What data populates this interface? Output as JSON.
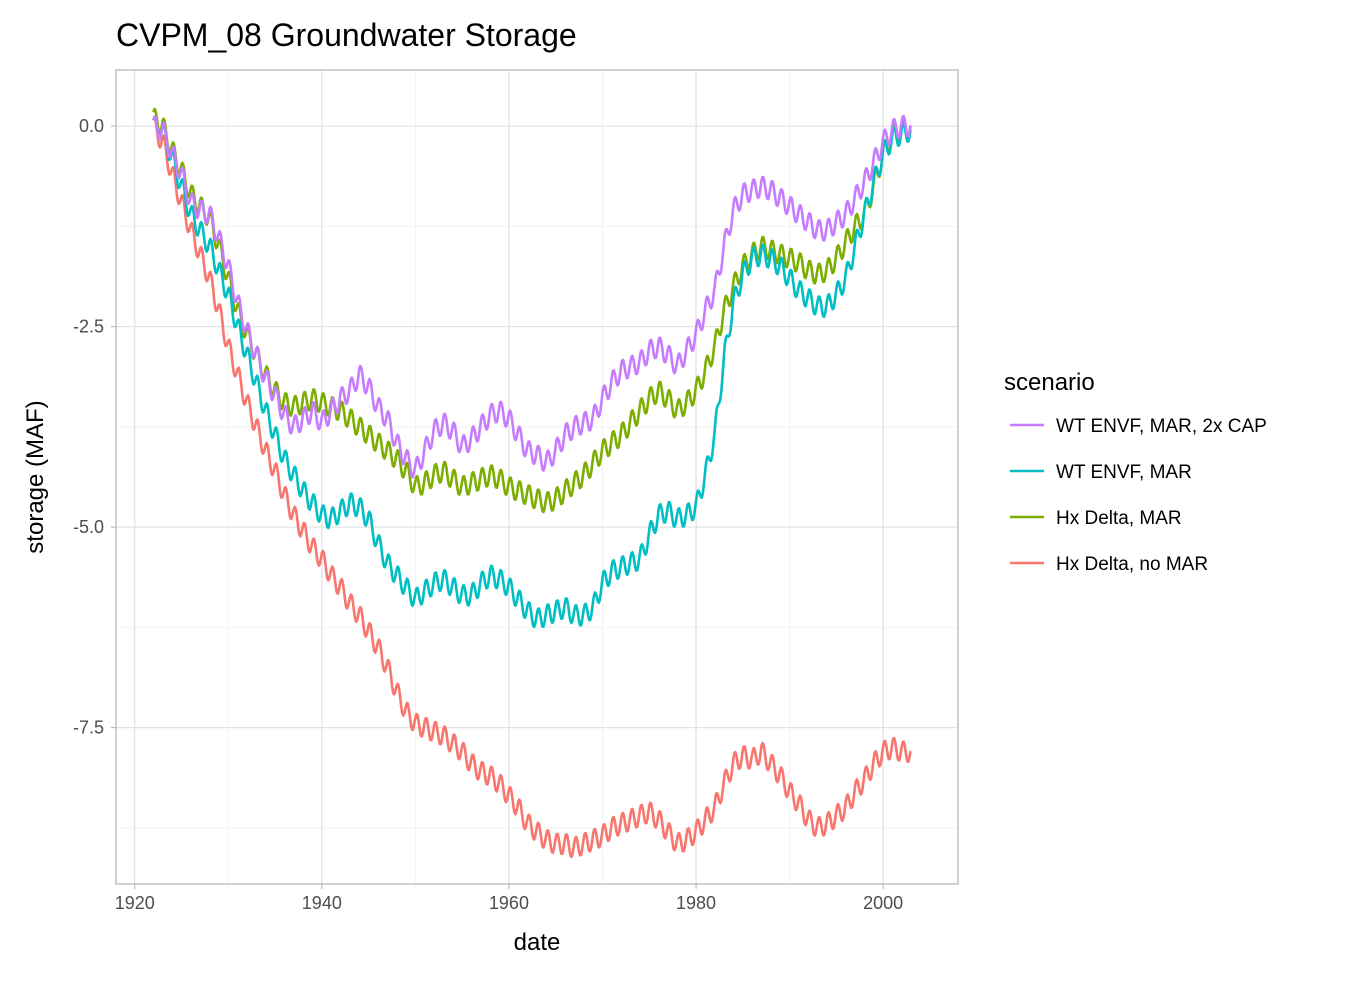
{
  "chart_data": {
    "type": "line",
    "title": "CVPM_08 Groundwater Storage",
    "xlabel": "date",
    "ylabel": "storage (MAF)",
    "xlim": [
      1918,
      2008
    ],
    "ylim": [
      -9.45,
      0.7
    ],
    "x_ticks": [
      1920,
      1940,
      1960,
      1980,
      2000
    ],
    "x_tick_labels": [
      "1920",
      "1940",
      "1960",
      "1980",
      "2000"
    ],
    "y_ticks": [
      0,
      -2.5,
      -5,
      -7.5
    ],
    "y_tick_labels": [
      "0.0",
      "-2.5",
      "-5.0",
      "-7.5"
    ],
    "grid": true,
    "legend": {
      "title": "scenario",
      "position": "right"
    },
    "series": [
      {
        "name": "WT ENVF, MAR, 2x CAP",
        "color": "#C77CFF",
        "x": [
          1922,
          1923,
          1924,
          1925,
          1926,
          1927,
          1928,
          1929,
          1930,
          1931,
          1932,
          1933,
          1934,
          1935,
          1936,
          1937,
          1938,
          1939,
          1940,
          1941,
          1942,
          1943,
          1944,
          1945,
          1946,
          1947,
          1948,
          1949,
          1950,
          1951,
          1952,
          1953,
          1954,
          1955,
          1956,
          1957,
          1958,
          1959,
          1960,
          1961,
          1962,
          1963,
          1964,
          1965,
          1966,
          1967,
          1968,
          1969,
          1970,
          1971,
          1972,
          1973,
          1974,
          1975,
          1976,
          1977,
          1978,
          1979,
          1980,
          1981,
          1982,
          1983,
          1984,
          1985,
          1986,
          1987,
          1988,
          1989,
          1990,
          1991,
          1992,
          1993,
          1994,
          1995,
          1996,
          1997,
          1998,
          1999,
          2000,
          2001,
          2002,
          2003
        ],
        "y": [
          0.0,
          -0.05,
          -0.35,
          -0.6,
          -0.95,
          -1.05,
          -1.1,
          -1.4,
          -1.75,
          -2.2,
          -2.55,
          -2.85,
          -3.15,
          -3.35,
          -3.6,
          -3.75,
          -3.65,
          -3.55,
          -3.7,
          -3.55,
          -3.4,
          -3.3,
          -3.1,
          -3.25,
          -3.5,
          -3.65,
          -3.95,
          -4.15,
          -4.3,
          -4.05,
          -3.8,
          -3.7,
          -3.8,
          -4.0,
          -3.9,
          -3.75,
          -3.6,
          -3.55,
          -3.65,
          -3.85,
          -4.05,
          -4.1,
          -4.2,
          -4.05,
          -3.85,
          -3.75,
          -3.7,
          -3.65,
          -3.4,
          -3.2,
          -3.05,
          -3.0,
          -2.95,
          -2.8,
          -2.75,
          -2.85,
          -3.0,
          -2.8,
          -2.6,
          -2.3,
          -2.05,
          -1.5,
          -1.05,
          -0.85,
          -0.8,
          -0.75,
          -0.8,
          -0.9,
          -1.0,
          -1.1,
          -1.2,
          -1.3,
          -1.3,
          -1.2,
          -1.1,
          -0.9,
          -0.7,
          -0.45,
          -0.2,
          -0.05,
          0.0,
          0.0
        ]
      },
      {
        "name": "WT ENVF, MAR",
        "color": "#00BFC4",
        "x": [
          1922,
          1923,
          1924,
          1925,
          1926,
          1927,
          1928,
          1929,
          1930,
          1931,
          1932,
          1933,
          1934,
          1935,
          1936,
          1937,
          1938,
          1939,
          1940,
          1941,
          1942,
          1943,
          1944,
          1945,
          1946,
          1947,
          1948,
          1949,
          1950,
          1951,
          1952,
          1953,
          1954,
          1955,
          1956,
          1957,
          1958,
          1959,
          1960,
          1961,
          1962,
          1963,
          1964,
          1965,
          1966,
          1967,
          1968,
          1969,
          1970,
          1971,
          1972,
          1973,
          1974,
          1975,
          1976,
          1977,
          1978,
          1979,
          1980,
          1981,
          1982,
          1983,
          1984,
          1985,
          1986,
          1987,
          1988,
          1989,
          1990,
          1991,
          1992,
          1993,
          1994,
          1995,
          1996,
          1997,
          1998,
          1999,
          2000,
          2001,
          2002,
          2003
        ],
        "y": [
          0.0,
          -0.05,
          -0.4,
          -0.75,
          -1.1,
          -1.3,
          -1.5,
          -1.8,
          -2.1,
          -2.5,
          -2.85,
          -3.2,
          -3.55,
          -3.85,
          -4.15,
          -4.35,
          -4.55,
          -4.7,
          -4.85,
          -4.9,
          -4.8,
          -4.7,
          -4.75,
          -4.9,
          -5.2,
          -5.45,
          -5.6,
          -5.75,
          -5.9,
          -5.8,
          -5.7,
          -5.65,
          -5.75,
          -5.85,
          -5.85,
          -5.7,
          -5.6,
          -5.65,
          -5.75,
          -5.9,
          -6.05,
          -6.15,
          -6.1,
          -6.05,
          -6.0,
          -6.1,
          -6.1,
          -6.0,
          -5.7,
          -5.55,
          -5.5,
          -5.45,
          -5.4,
          -5.1,
          -4.85,
          -4.8,
          -4.9,
          -4.85,
          -4.75,
          -4.35,
          -3.85,
          -2.9,
          -2.2,
          -1.85,
          -1.65,
          -1.6,
          -1.65,
          -1.75,
          -1.9,
          -2.05,
          -2.15,
          -2.25,
          -2.25,
          -2.1,
          -1.9,
          -1.5,
          -1.1,
          -0.7,
          -0.35,
          -0.15,
          -0.1,
          -0.05
        ]
      },
      {
        "name": "Hx Delta, MAR",
        "color": "#7CAE00",
        "x": [
          1922,
          1923,
          1924,
          1925,
          1926,
          1927,
          1928,
          1929,
          1930,
          1931,
          1932,
          1933,
          1934,
          1935,
          1936,
          1937,
          1938,
          1939,
          1940,
          1941,
          1942,
          1943,
          1944,
          1945,
          1946,
          1947,
          1948,
          1949,
          1950,
          1951,
          1952,
          1953,
          1954,
          1955,
          1956,
          1957,
          1958,
          1959,
          1960,
          1961,
          1962,
          1963,
          1964,
          1965,
          1966,
          1967,
          1968,
          1969,
          1970,
          1971,
          1972,
          1973,
          1974,
          1975,
          1976,
          1977,
          1978,
          1979,
          1980,
          1981,
          1982,
          1983,
          1984,
          1985,
          1986,
          1987,
          1988,
          1989,
          1990,
          1991,
          1992,
          1993,
          1994,
          1995,
          1996,
          1997,
          1998,
          1999,
          2000,
          2001,
          2002,
          2003
        ],
        "y": [
          0.1,
          0.0,
          -0.3,
          -0.55,
          -0.85,
          -1.0,
          -1.15,
          -1.5,
          -1.9,
          -2.3,
          -2.6,
          -2.85,
          -3.1,
          -3.3,
          -3.45,
          -3.5,
          -3.45,
          -3.4,
          -3.45,
          -3.5,
          -3.55,
          -3.65,
          -3.75,
          -3.85,
          -3.95,
          -4.05,
          -4.15,
          -4.3,
          -4.5,
          -4.45,
          -4.35,
          -4.3,
          -4.4,
          -4.5,
          -4.45,
          -4.4,
          -4.35,
          -4.4,
          -4.5,
          -4.55,
          -4.6,
          -4.65,
          -4.7,
          -4.65,
          -4.55,
          -4.45,
          -4.35,
          -4.2,
          -4.05,
          -3.95,
          -3.85,
          -3.7,
          -3.55,
          -3.4,
          -3.3,
          -3.4,
          -3.55,
          -3.45,
          -3.3,
          -3.05,
          -2.75,
          -2.3,
          -2.0,
          -1.75,
          -1.6,
          -1.5,
          -1.55,
          -1.6,
          -1.65,
          -1.7,
          -1.8,
          -1.85,
          -1.8,
          -1.65,
          -1.45,
          -1.25,
          -1.1,
          -0.75,
          -0.35,
          -0.1,
          -0.05,
          0.0
        ]
      },
      {
        "name": "Hx Delta, no MAR",
        "color": "#F8766D",
        "x": [
          1922,
          1923,
          1924,
          1925,
          1926,
          1927,
          1928,
          1929,
          1930,
          1931,
          1932,
          1933,
          1934,
          1935,
          1936,
          1937,
          1938,
          1939,
          1940,
          1941,
          1942,
          1943,
          1944,
          1945,
          1946,
          1947,
          1948,
          1949,
          1950,
          1951,
          1952,
          1953,
          1954,
          1955,
          1956,
          1957,
          1958,
          1959,
          1960,
          1961,
          1962,
          1963,
          1964,
          1965,
          1966,
          1967,
          1968,
          1969,
          1970,
          1971,
          1972,
          1973,
          1974,
          1975,
          1976,
          1977,
          1978,
          1979,
          1980,
          1981,
          1982,
          1983,
          1984,
          1985,
          1986,
          1987,
          1988,
          1989,
          1990,
          1991,
          1992,
          1993,
          1994,
          1995,
          1996,
          1997,
          1998,
          1999,
          2000,
          2001,
          2002,
          2003
        ],
        "y": [
          0.0,
          -0.2,
          -0.6,
          -0.95,
          -1.3,
          -1.6,
          -1.9,
          -2.3,
          -2.75,
          -3.1,
          -3.45,
          -3.75,
          -4.05,
          -4.3,
          -4.6,
          -4.85,
          -5.05,
          -5.25,
          -5.4,
          -5.6,
          -5.75,
          -5.95,
          -6.1,
          -6.3,
          -6.5,
          -6.75,
          -7.05,
          -7.3,
          -7.45,
          -7.5,
          -7.55,
          -7.6,
          -7.7,
          -7.8,
          -7.95,
          -8.05,
          -8.1,
          -8.2,
          -8.35,
          -8.5,
          -8.7,
          -8.8,
          -8.9,
          -8.95,
          -8.95,
          -9.0,
          -8.95,
          -8.9,
          -8.85,
          -8.75,
          -8.7,
          -8.65,
          -8.6,
          -8.55,
          -8.65,
          -8.8,
          -8.95,
          -8.9,
          -8.8,
          -8.65,
          -8.5,
          -8.2,
          -7.95,
          -7.85,
          -7.9,
          -7.8,
          -7.95,
          -8.1,
          -8.3,
          -8.45,
          -8.65,
          -8.75,
          -8.7,
          -8.6,
          -8.5,
          -8.3,
          -8.15,
          -7.95,
          -7.8,
          -7.75,
          -7.8,
          -7.8
        ]
      }
    ]
  }
}
